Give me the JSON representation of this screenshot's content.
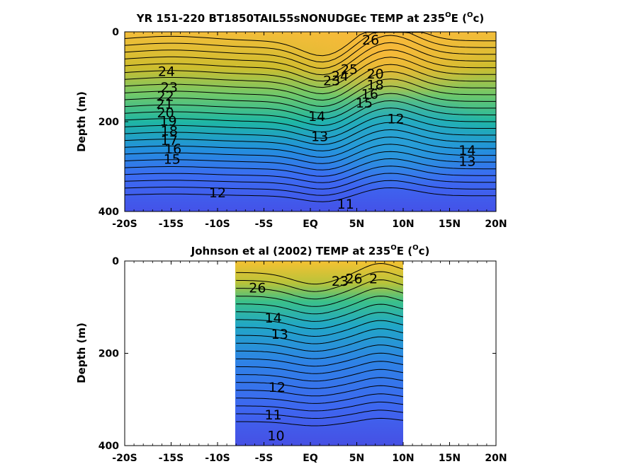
{
  "chart_data": [
    {
      "type": "heatmap",
      "title": "YR 151-220 BT1850TAIL55sNONUDGEc TEMP at 235",
      "title_unit": "E (",
      "title_unit_end": "c)",
      "title_sup": "O",
      "ylabel": "Depth (m)",
      "xlim": [
        -20,
        20
      ],
      "ylim": [
        0,
        400
      ],
      "x_ticks": [
        -20,
        -15,
        -10,
        -5,
        0,
        5,
        10,
        15,
        20
      ],
      "x_tick_labels": [
        "-20S",
        "-15S",
        "-10S",
        "-5S",
        "EQ",
        "5N",
        "10N",
        "15N",
        "20N"
      ],
      "y_ticks": [
        0,
        200,
        400
      ],
      "y_tick_labels": [
        "0",
        "200",
        "400"
      ],
      "data_x_range": [
        -20,
        20
      ],
      "contour_labels": [
        {
          "text": "26",
          "x": 6.5,
          "y": 20
        },
        {
          "text": "25",
          "x": 4.2,
          "y": 85
        },
        {
          "text": "23",
          "x": 2.3,
          "y": 110
        },
        {
          "text": "24",
          "x": 3.2,
          "y": 100
        },
        {
          "text": "20",
          "x": 7.0,
          "y": 95
        },
        {
          "text": "18",
          "x": 7.0,
          "y": 120
        },
        {
          "text": "16",
          "x": 6.4,
          "y": 140
        },
        {
          "text": "15",
          "x": 5.8,
          "y": 160
        },
        {
          "text": "24",
          "x": -15.5,
          "y": 90
        },
        {
          "text": "23",
          "x": -15.2,
          "y": 125
        },
        {
          "text": "22",
          "x": -15.6,
          "y": 145
        },
        {
          "text": "21",
          "x": -15.7,
          "y": 162
        },
        {
          "text": "20",
          "x": -15.6,
          "y": 182
        },
        {
          "text": "19",
          "x": -15.3,
          "y": 200
        },
        {
          "text": "18",
          "x": -15.2,
          "y": 222
        },
        {
          "text": "17",
          "x": -15.2,
          "y": 243
        },
        {
          "text": "16",
          "x": -14.8,
          "y": 262
        },
        {
          "text": "15",
          "x": -14.9,
          "y": 285
        },
        {
          "text": "14",
          "x": 0.7,
          "y": 190
        },
        {
          "text": "13",
          "x": 1.0,
          "y": 235
        },
        {
          "text": "12",
          "x": 9.2,
          "y": 195
        },
        {
          "text": "12",
          "x": -10.0,
          "y": 360
        },
        {
          "text": "11",
          "x": 3.8,
          "y": 385
        },
        {
          "text": "14",
          "x": 16.9,
          "y": 265
        },
        {
          "text": "13",
          "x": 16.9,
          "y": 290
        }
      ]
    },
    {
      "type": "heatmap",
      "title": "Johnson et al (2002) TEMP at 235",
      "title_unit": "E (",
      "title_unit_end": "c)",
      "title_sup": "O",
      "ylabel": "Depth (m)",
      "xlim": [
        -20,
        20
      ],
      "ylim": [
        0,
        400
      ],
      "x_ticks": [
        -20,
        -15,
        -10,
        -5,
        0,
        5,
        10,
        15,
        20
      ],
      "x_tick_labels": [
        "-20S",
        "-15S",
        "-10S",
        "-5S",
        "EQ",
        "5N",
        "10N",
        "15N",
        "20N"
      ],
      "y_ticks": [
        0,
        200,
        400
      ],
      "y_tick_labels": [
        "0",
        "200",
        "400"
      ],
      "data_x_range": [
        -8,
        10
      ],
      "contour_labels": [
        {
          "text": "26",
          "x": -5.7,
          "y": 60
        },
        {
          "text": "23",
          "x": 3.2,
          "y": 45
        },
        {
          "text": "26",
          "x": 4.7,
          "y": 40
        },
        {
          "text": "2",
          "x": 6.8,
          "y": 40
        },
        {
          "text": "14",
          "x": -4.0,
          "y": 125
        },
        {
          "text": "13",
          "x": -3.3,
          "y": 160
        },
        {
          "text": "12",
          "x": -3.6,
          "y": 275
        },
        {
          "text": "11",
          "x": -4.0,
          "y": 335
        },
        {
          "text": "10",
          "x": -3.7,
          "y": 380
        }
      ]
    }
  ]
}
